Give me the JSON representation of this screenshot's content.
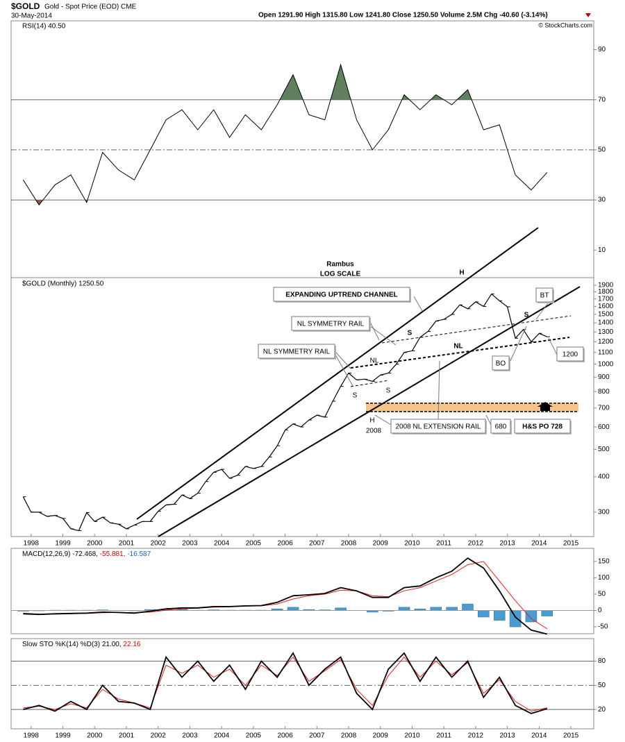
{
  "header": {
    "symbol": "$GOLD",
    "name": "Gold - Spot Price (EOD) CME",
    "date": "30-May-2014",
    "quote": "Open 1291.90  High 1315.80  Low 1241.80  Close 1250.50  Volume 2.5M  Chg -40.60 (-3.14%)",
    "copyright": "© StockCharts.com"
  },
  "chart_data": [
    {
      "type": "rsi",
      "title": "RSI(14) 40.50",
      "color": "#000000",
      "overbought": 70,
      "oversold": 30,
      "midline": 50,
      "overbought_fill": "#5f7f5f",
      "oversold_fill": "#8a5a50",
      "x": [
        1997.75,
        1998.25,
        1998.75,
        1999.25,
        1999.75,
        2000.25,
        2000.75,
        2001.25,
        2001.75,
        2002.25,
        2002.75,
        2003.25,
        2003.75,
        2004.25,
        2004.75,
        2005.25,
        2005.75,
        2006.25,
        2006.75,
        2007.25,
        2007.75,
        2008.25,
        2008.75,
        2009.25,
        2009.75,
        2010.25,
        2010.75,
        2011.25,
        2011.75,
        2012.25,
        2012.75,
        2013.25,
        2013.75,
        2014.25
      ],
      "values": [
        38,
        28,
        36,
        40,
        29,
        49,
        42,
        38,
        50,
        62,
        66,
        58,
        66,
        55,
        64,
        58,
        68,
        80,
        64,
        62,
        84,
        62,
        50,
        58,
        72,
        66,
        72,
        68,
        74,
        58,
        60,
        40,
        34,
        41
      ],
      "xlim": [
        1997.37,
        2015.72
      ],
      "ylim": [
        -1,
        101.5
      ],
      "yticks": [
        10,
        30,
        50,
        70,
        90
      ]
    },
    {
      "type": "price",
      "title": "$GOLD (Monthly) 1250.50",
      "log": true,
      "color": "#000000",
      "x": [
        1997.75,
        1998,
        1998.25,
        1998.5,
        1998.75,
        1999,
        1999.25,
        1999.5,
        1999.75,
        2000,
        2000.25,
        2000.5,
        2000.75,
        2001,
        2001.25,
        2001.5,
        2001.75,
        2002,
        2002.25,
        2002.5,
        2002.75,
        2003,
        2003.25,
        2003.5,
        2003.75,
        2004,
        2004.25,
        2004.5,
        2004.75,
        2005,
        2005.25,
        2005.5,
        2005.75,
        2006,
        2006.25,
        2006.5,
        2006.75,
        2007,
        2007.25,
        2007.5,
        2007.75,
        2008,
        2008.25,
        2008.5,
        2008.75,
        2009,
        2009.25,
        2009.5,
        2009.75,
        2010,
        2010.25,
        2010.5,
        2010.75,
        2011,
        2011.25,
        2011.5,
        2011.75,
        2012,
        2012.25,
        2012.5,
        2012.75,
        2013,
        2013.25,
        2013.5,
        2013.75,
        2014,
        2014.25
      ],
      "values": [
        340,
        300,
        300,
        290,
        292,
        285,
        262,
        258,
        299,
        278,
        288,
        275,
        272,
        262,
        270,
        278,
        278,
        302,
        318,
        320,
        345,
        335,
        350,
        385,
        415,
        425,
        395,
        405,
        435,
        428,
        435,
        470,
        515,
        585,
        615,
        600,
        635,
        660,
        650,
        740,
        835,
        930,
        880,
        885,
        870,
        915,
        930,
        1000,
        1100,
        1115,
        1245,
        1305,
        1420,
        1440,
        1500,
        1620,
        1570,
        1660,
        1600,
        1770,
        1675,
        1595,
        1235,
        1325,
        1200,
        1285,
        1250
      ],
      "xlim": [
        1997.37,
        2015.72
      ],
      "ylim": [
        246,
        2022
      ],
      "yticks": [
        300,
        400,
        500,
        600,
        700,
        800,
        900,
        1000,
        1100,
        1200,
        1300,
        1400,
        1500,
        1600,
        1700,
        1800,
        1900
      ],
      "xticks": [
        1998,
        1999,
        2000,
        2001,
        2002,
        2003,
        2004,
        2005,
        2006,
        2007,
        2008,
        2009,
        2010,
        2011,
        2012,
        2013,
        2014,
        2015
      ],
      "zone": [
        680,
        728
      ],
      "zone_color": "#f5c48a",
      "annotations": [
        "Rambus",
        "LOG SCALE",
        "H",
        "EXPANDING UPTREND CHANNEL",
        "NL SYMMETRY RAIL",
        "NL SYMMETRY RAIL",
        "S",
        "NL",
        "S",
        "S",
        "NL",
        "S",
        "BT",
        "BO",
        "1200",
        "H",
        "2008",
        "2008 NL EXTENSION RAIL",
        "680",
        "H&S PO 728"
      ]
    },
    {
      "type": "macd",
      "title_parts": [
        {
          "text": "MACD(12,26,9) -72.468,",
          "color": "#000000"
        },
        {
          "text": " -55.881,",
          "color": "#d00000"
        },
        {
          "text": " -16.587",
          "color": "#2060b0"
        }
      ],
      "x": [
        1997.75,
        1998.25,
        1998.75,
        1999.25,
        1999.75,
        2000.25,
        2000.75,
        2001.25,
        2001.75,
        2002.25,
        2002.75,
        2003.25,
        2003.75,
        2004.25,
        2004.75,
        2005.25,
        2005.75,
        2006.25,
        2006.75,
        2007.25,
        2007.75,
        2008.25,
        2008.75,
        2009.25,
        2009.75,
        2010.25,
        2010.75,
        2011.25,
        2011.75,
        2012.25,
        2012.75,
        2013.25,
        2013.75,
        2014.25
      ],
      "series": [
        {
          "name": "MACD",
          "color": "#000000",
          "values": [
            -10,
            -12,
            -10,
            -9,
            -8,
            -5,
            -6,
            -8,
            -2,
            5,
            8,
            8,
            12,
            12,
            14,
            15,
            25,
            45,
            48,
            52,
            70,
            60,
            40,
            40,
            70,
            75,
            100,
            120,
            160,
            130,
            60,
            -20,
            -60,
            -72
          ]
        },
        {
          "name": "Signal",
          "color": "#e02020",
          "values": [
            -8,
            -11,
            -11,
            -10,
            -9,
            -7,
            -6,
            -7,
            -5,
            1,
            5,
            7,
            10,
            11,
            13,
            14,
            20,
            35,
            45,
            50,
            62,
            60,
            45,
            42,
            60,
            70,
            90,
            110,
            140,
            150,
            90,
            30,
            -25,
            -56
          ]
        },
        {
          "name": "Histogram",
          "color": "#4a9bd0",
          "values": [
            -2,
            -1,
            1,
            1,
            1,
            2,
            0,
            -1,
            3,
            4,
            3,
            1,
            2,
            1,
            1,
            1,
            5,
            10,
            3,
            2,
            8,
            0,
            -5,
            -2,
            10,
            5,
            10,
            10,
            20,
            -20,
            -30,
            -50,
            -35,
            -17
          ]
        }
      ],
      "xlim": [
        1997.37,
        2015.72
      ],
      "ylim": [
        -71,
        190
      ],
      "yticks": [
        -50,
        0,
        50,
        100,
        150
      ]
    },
    {
      "type": "sto",
      "title_parts": [
        {
          "text": "Slow STO %K(14) %D(3) 21.00,",
          "color": "#000000"
        },
        {
          "text": " 22.16",
          "color": "#d00000"
        }
      ],
      "x": [
        1997.75,
        1998.25,
        1998.75,
        1999.25,
        1999.75,
        2000.25,
        2000.75,
        2001.25,
        2001.75,
        2002.25,
        2002.75,
        2003.25,
        2003.75,
        2004.25,
        2004.75,
        2005.25,
        2005.75,
        2006.25,
        2006.75,
        2007.25,
        2007.75,
        2008.25,
        2008.75,
        2009.25,
        2009.75,
        2010.25,
        2010.75,
        2011.25,
        2011.75,
        2012.25,
        2012.75,
        2013.25,
        2013.75,
        2014.25
      ],
      "series": [
        {
          "name": "%K",
          "color": "#000000",
          "values": [
            20,
            25,
            18,
            30,
            20,
            50,
            30,
            28,
            20,
            85,
            60,
            80,
            55,
            75,
            45,
            80,
            60,
            90,
            50,
            70,
            85,
            40,
            20,
            70,
            90,
            55,
            85,
            60,
            80,
            35,
            60,
            25,
            15,
            21
          ]
        },
        {
          "name": "%D",
          "color": "#e02020",
          "values": [
            22,
            24,
            20,
            27,
            22,
            45,
            33,
            28,
            22,
            75,
            65,
            75,
            60,
            70,
            50,
            75,
            62,
            85,
            55,
            68,
            82,
            45,
            25,
            62,
            85,
            60,
            80,
            63,
            78,
            40,
            57,
            30,
            18,
            22
          ]
        }
      ],
      "overbought": 80,
      "oversold": 20,
      "midline": 50,
      "xlim": [
        1997.37,
        2015.72
      ],
      "ylim": [
        -4,
        108
      ],
      "yticks": [
        20,
        50,
        80
      ],
      "xticks": [
        1998,
        1999,
        2000,
        2001,
        2002,
        2003,
        2004,
        2005,
        2006,
        2007,
        2008,
        2009,
        2010,
        2011,
        2012,
        2013,
        2014,
        2015
      ]
    }
  ]
}
